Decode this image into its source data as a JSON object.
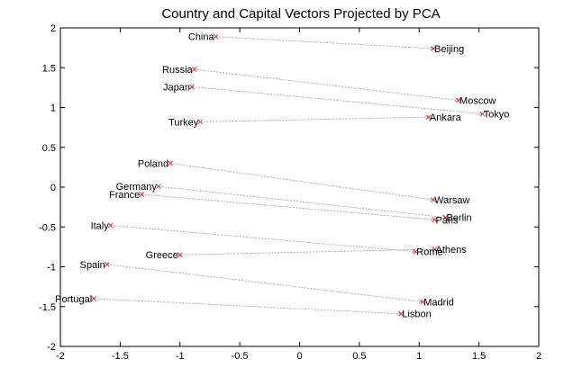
{
  "chart_data": {
    "type": "scatter",
    "title": "Country and Capital Vectors Projected by PCA",
    "xlim": [
      -2,
      2
    ],
    "ylim": [
      -2,
      2
    ],
    "xticks": [
      -2,
      -1.5,
      -1,
      -0.5,
      0,
      0.5,
      1,
      1.5,
      2
    ],
    "yticks": [
      -2,
      -1.5,
      -1,
      -0.5,
      0,
      0.5,
      1,
      1.5,
      2
    ],
    "xtick_labels": [
      "-2",
      "-1.5",
      "-1",
      "-0.5",
      "0",
      "0.5",
      "1",
      "1.5",
      "2"
    ],
    "ytick_labels": [
      "-2",
      "-1.5",
      "-1",
      "-0.5",
      "0",
      "0.5",
      "1",
      "1.5",
      "2"
    ],
    "grid": false,
    "pairs": [
      {
        "country": "China",
        "cx": -0.7,
        "cy": 1.89,
        "capital": "Beijing",
        "px": 1.12,
        "py": 1.74
      },
      {
        "country": "Russia",
        "cx": -0.88,
        "cy": 1.48,
        "capital": "Moscow",
        "px": 1.33,
        "py": 1.09
      },
      {
        "country": "Japan",
        "cx": -0.9,
        "cy": 1.26,
        "capital": "Tokyo",
        "px": 1.53,
        "py": 0.92
      },
      {
        "country": "Turkey",
        "cx": -0.83,
        "cy": 0.82,
        "capital": "Ankara",
        "px": 1.08,
        "py": 0.88
      },
      {
        "country": "Poland",
        "cx": -1.08,
        "cy": 0.3,
        "capital": "Warsaw",
        "px": 1.12,
        "py": -0.16
      },
      {
        "country": "Germany",
        "cx": -1.18,
        "cy": 0.01,
        "capital": "Berlin",
        "px": 1.22,
        "py": -0.38
      },
      {
        "country": "France",
        "cx": -1.32,
        "cy": -0.09,
        "capital": "Paris",
        "px": 1.13,
        "py": -0.41
      },
      {
        "country": "Italy",
        "cx": -1.58,
        "cy": -0.48,
        "capital": "Rome",
        "px": 0.97,
        "py": -0.81
      },
      {
        "country": "Greece",
        "cx": -1.0,
        "cy": -0.85,
        "capital": "Athens",
        "px": 1.13,
        "py": -0.78
      },
      {
        "country": "Spain",
        "cx": -1.61,
        "cy": -0.97,
        "capital": "Madrid",
        "px": 1.03,
        "py": -1.44
      },
      {
        "country": "Portugal",
        "cx": -1.72,
        "cy": -1.4,
        "capital": "Lisbon",
        "px": 0.85,
        "py": -1.59
      }
    ]
  }
}
